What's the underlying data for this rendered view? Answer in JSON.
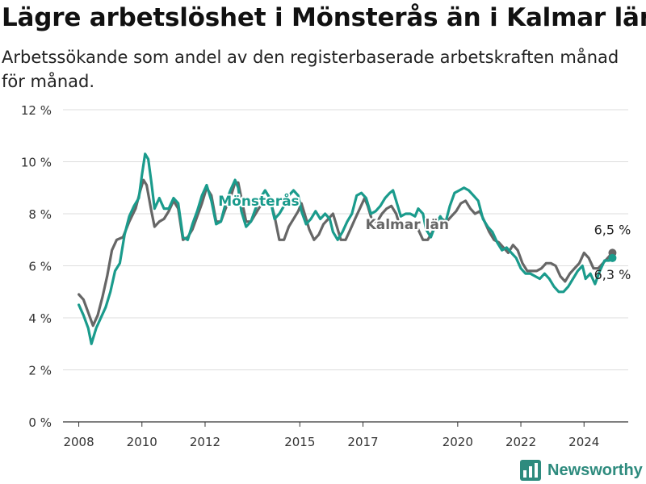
{
  "title": "Lägre arbetslöshet i Mönsterås än i Kalmar län",
  "subtitle": "Arbetssökande som andel av den registerbaserade arbetskraften månad för månad.",
  "brand": "Newsworthy",
  "colors": {
    "monsteras": "#1a9b8c",
    "kalmar": "#666666",
    "grid": "#dddddd",
    "axis": "#333333"
  },
  "chart_data": {
    "type": "line",
    "ylim": [
      0,
      12
    ],
    "yticks": [
      0,
      2,
      4,
      6,
      8,
      10,
      12
    ],
    "ytick_labels": [
      "0 %",
      "2 %",
      "4 %",
      "6 %",
      "8 %",
      "10 %",
      "12 %"
    ],
    "xlim": [
      2007.5,
      2025.4
    ],
    "xticks": [
      2008,
      2010,
      2012,
      2015,
      2017,
      2020,
      2022,
      2024
    ],
    "xtick_labels": [
      "2008",
      "2010",
      "2012",
      "2015",
      "2017",
      "2020",
      "2022",
      "2024"
    ],
    "series": [
      {
        "name": "Kalmar län",
        "color": "#666666",
        "end_label": "6,5 %",
        "points": [
          [
            2008.0,
            4.9
          ],
          [
            2008.15,
            4.7
          ],
          [
            2008.3,
            4.2
          ],
          [
            2008.45,
            3.7
          ],
          [
            2008.6,
            4.1
          ],
          [
            2008.75,
            4.8
          ],
          [
            2008.9,
            5.6
          ],
          [
            2009.05,
            6.6
          ],
          [
            2009.2,
            7.0
          ],
          [
            2009.4,
            7.1
          ],
          [
            2009.6,
            7.7
          ],
          [
            2009.8,
            8.2
          ],
          [
            2009.95,
            8.9
          ],
          [
            2010.05,
            9.3
          ],
          [
            2010.15,
            9.1
          ],
          [
            2010.3,
            8.1
          ],
          [
            2010.4,
            7.5
          ],
          [
            2010.55,
            7.7
          ],
          [
            2010.7,
            7.8
          ],
          [
            2010.85,
            8.1
          ],
          [
            2011.0,
            8.5
          ],
          [
            2011.15,
            8.2
          ],
          [
            2011.3,
            7.0
          ],
          [
            2011.45,
            7.1
          ],
          [
            2011.6,
            7.4
          ],
          [
            2011.75,
            7.9
          ],
          [
            2011.9,
            8.4
          ],
          [
            2012.05,
            9.0
          ],
          [
            2012.2,
            8.7
          ],
          [
            2012.35,
            7.7
          ],
          [
            2012.5,
            7.7
          ],
          [
            2012.65,
            8.2
          ],
          [
            2012.8,
            8.6
          ],
          [
            2012.95,
            9.2
          ],
          [
            2013.05,
            9.2
          ],
          [
            2013.15,
            8.6
          ],
          [
            2013.3,
            7.7
          ],
          [
            2013.45,
            7.7
          ],
          [
            2013.6,
            8.0
          ],
          [
            2013.75,
            8.3
          ],
          [
            2013.9,
            8.5
          ],
          [
            2014.05,
            8.6
          ],
          [
            2014.2,
            7.9
          ],
          [
            2014.35,
            7.0
          ],
          [
            2014.5,
            7.0
          ],
          [
            2014.65,
            7.5
          ],
          [
            2014.8,
            7.8
          ],
          [
            2014.95,
            8.1
          ],
          [
            2015.05,
            8.4
          ],
          [
            2015.15,
            8.0
          ],
          [
            2015.3,
            7.4
          ],
          [
            2015.45,
            7.0
          ],
          [
            2015.6,
            7.2
          ],
          [
            2015.75,
            7.6
          ],
          [
            2015.9,
            7.8
          ],
          [
            2016.05,
            8.0
          ],
          [
            2016.15,
            7.6
          ],
          [
            2016.3,
            7.0
          ],
          [
            2016.45,
            7.0
          ],
          [
            2016.6,
            7.4
          ],
          [
            2016.75,
            7.8
          ],
          [
            2016.9,
            8.2
          ],
          [
            2017.05,
            8.6
          ],
          [
            2017.15,
            8.3
          ],
          [
            2017.3,
            7.7
          ],
          [
            2017.45,
            7.7
          ],
          [
            2017.6,
            8.0
          ],
          [
            2017.75,
            8.2
          ],
          [
            2017.9,
            8.3
          ],
          [
            2018.05,
            8.0
          ],
          [
            2018.15,
            7.6
          ],
          [
            2018.3,
            7.6
          ],
          [
            2018.45,
            7.7
          ],
          [
            2018.6,
            7.6
          ],
          [
            2018.75,
            7.4
          ],
          [
            2018.9,
            7.0
          ],
          [
            2019.05,
            7.0
          ],
          [
            2019.2,
            7.3
          ],
          [
            2019.35,
            7.6
          ],
          [
            2019.5,
            7.8
          ],
          [
            2019.65,
            7.7
          ],
          [
            2019.8,
            7.9
          ],
          [
            2019.95,
            8.1
          ],
          [
            2020.1,
            8.4
          ],
          [
            2020.25,
            8.5
          ],
          [
            2020.4,
            8.2
          ],
          [
            2020.55,
            8.0
          ],
          [
            2020.7,
            8.1
          ],
          [
            2020.85,
            7.7
          ],
          [
            2021.0,
            7.3
          ],
          [
            2021.15,
            7.0
          ],
          [
            2021.3,
            6.9
          ],
          [
            2021.45,
            6.7
          ],
          [
            2021.6,
            6.5
          ],
          [
            2021.75,
            6.8
          ],
          [
            2021.9,
            6.6
          ],
          [
            2022.05,
            6.1
          ],
          [
            2022.2,
            5.8
          ],
          [
            2022.35,
            5.8
          ],
          [
            2022.5,
            5.8
          ],
          [
            2022.65,
            5.9
          ],
          [
            2022.8,
            6.1
          ],
          [
            2022.95,
            6.1
          ],
          [
            2023.1,
            6.0
          ],
          [
            2023.25,
            5.6
          ],
          [
            2023.4,
            5.4
          ],
          [
            2023.55,
            5.7
          ],
          [
            2023.7,
            5.9
          ],
          [
            2023.85,
            6.1
          ],
          [
            2024.0,
            6.5
          ],
          [
            2024.15,
            6.3
          ],
          [
            2024.3,
            5.9
          ],
          [
            2024.45,
            5.9
          ],
          [
            2024.6,
            6.1
          ],
          [
            2024.75,
            6.3
          ],
          [
            2024.9,
            6.5
          ]
        ]
      },
      {
        "name": "Mönsterås",
        "color": "#1a9b8c",
        "end_label": "6,3 %",
        "points": [
          [
            2008.0,
            4.5
          ],
          [
            2008.15,
            4.1
          ],
          [
            2008.3,
            3.6
          ],
          [
            2008.4,
            3.0
          ],
          [
            2008.55,
            3.6
          ],
          [
            2008.7,
            4.0
          ],
          [
            2008.85,
            4.4
          ],
          [
            2009.0,
            5.0
          ],
          [
            2009.15,
            5.8
          ],
          [
            2009.3,
            6.1
          ],
          [
            2009.45,
            7.2
          ],
          [
            2009.6,
            7.9
          ],
          [
            2009.75,
            8.3
          ],
          [
            2009.9,
            8.6
          ],
          [
            2010.0,
            9.5
          ],
          [
            2010.1,
            10.3
          ],
          [
            2010.2,
            10.1
          ],
          [
            2010.3,
            9.2
          ],
          [
            2010.4,
            8.2
          ],
          [
            2010.55,
            8.6
          ],
          [
            2010.7,
            8.2
          ],
          [
            2010.85,
            8.2
          ],
          [
            2011.0,
            8.6
          ],
          [
            2011.15,
            8.4
          ],
          [
            2011.3,
            7.1
          ],
          [
            2011.45,
            7.0
          ],
          [
            2011.6,
            7.6
          ],
          [
            2011.75,
            8.1
          ],
          [
            2011.9,
            8.7
          ],
          [
            2012.05,
            9.1
          ],
          [
            2012.2,
            8.5
          ],
          [
            2012.35,
            7.6
          ],
          [
            2012.5,
            7.7
          ],
          [
            2012.65,
            8.4
          ],
          [
            2012.8,
            8.9
          ],
          [
            2012.95,
            9.3
          ],
          [
            2013.05,
            9.0
          ],
          [
            2013.15,
            8.1
          ],
          [
            2013.3,
            7.5
          ],
          [
            2013.45,
            7.7
          ],
          [
            2013.6,
            8.2
          ],
          [
            2013.75,
            8.6
          ],
          [
            2013.9,
            8.9
          ],
          [
            2014.05,
            8.6
          ],
          [
            2014.2,
            7.8
          ],
          [
            2014.35,
            8.0
          ],
          [
            2014.5,
            8.3
          ],
          [
            2014.65,
            8.7
          ],
          [
            2014.8,
            8.9
          ],
          [
            2014.95,
            8.7
          ],
          [
            2015.05,
            8.1
          ],
          [
            2015.2,
            7.6
          ],
          [
            2015.35,
            7.8
          ],
          [
            2015.5,
            8.1
          ],
          [
            2015.65,
            7.8
          ],
          [
            2015.8,
            8.0
          ],
          [
            2015.95,
            7.8
          ],
          [
            2016.05,
            7.3
          ],
          [
            2016.2,
            7.0
          ],
          [
            2016.35,
            7.3
          ],
          [
            2016.5,
            7.7
          ],
          [
            2016.65,
            8.0
          ],
          [
            2016.8,
            8.7
          ],
          [
            2016.95,
            8.8
          ],
          [
            2017.1,
            8.6
          ],
          [
            2017.25,
            8.0
          ],
          [
            2017.4,
            8.1
          ],
          [
            2017.55,
            8.3
          ],
          [
            2017.7,
            8.6
          ],
          [
            2017.85,
            8.8
          ],
          [
            2017.95,
            8.9
          ],
          [
            2018.05,
            8.5
          ],
          [
            2018.2,
            7.9
          ],
          [
            2018.35,
            8.0
          ],
          [
            2018.5,
            8.0
          ],
          [
            2018.65,
            7.9
          ],
          [
            2018.75,
            8.2
          ],
          [
            2018.9,
            8.0
          ],
          [
            2019.0,
            7.4
          ],
          [
            2019.15,
            7.1
          ],
          [
            2019.3,
            7.6
          ],
          [
            2019.45,
            7.9
          ],
          [
            2019.6,
            7.6
          ],
          [
            2019.75,
            8.3
          ],
          [
            2019.9,
            8.8
          ],
          [
            2020.05,
            8.9
          ],
          [
            2020.2,
            9.0
          ],
          [
            2020.35,
            8.9
          ],
          [
            2020.5,
            8.7
          ],
          [
            2020.65,
            8.5
          ],
          [
            2020.8,
            7.8
          ],
          [
            2020.95,
            7.5
          ],
          [
            2021.1,
            7.3
          ],
          [
            2021.25,
            6.9
          ],
          [
            2021.4,
            6.6
          ],
          [
            2021.55,
            6.7
          ],
          [
            2021.7,
            6.5
          ],
          [
            2021.85,
            6.3
          ],
          [
            2022.0,
            5.9
          ],
          [
            2022.15,
            5.7
          ],
          [
            2022.3,
            5.7
          ],
          [
            2022.45,
            5.6
          ],
          [
            2022.6,
            5.5
          ],
          [
            2022.75,
            5.7
          ],
          [
            2022.9,
            5.5
          ],
          [
            2023.05,
            5.2
          ],
          [
            2023.2,
            5.0
          ],
          [
            2023.35,
            5.0
          ],
          [
            2023.5,
            5.2
          ],
          [
            2023.65,
            5.5
          ],
          [
            2023.8,
            5.8
          ],
          [
            2023.95,
            6.0
          ],
          [
            2024.05,
            5.5
          ],
          [
            2024.2,
            5.7
          ],
          [
            2024.35,
            5.3
          ],
          [
            2024.5,
            5.8
          ],
          [
            2024.65,
            6.2
          ],
          [
            2024.8,
            6.2
          ],
          [
            2024.9,
            6.3
          ]
        ]
      }
    ],
    "annotations": [
      {
        "text": "Mönsterås",
        "series": "Mönsterås",
        "x": 2013.7,
        "y": 8.5
      },
      {
        "text": "Kalmar län",
        "series": "Kalmar län",
        "x": 2018.4,
        "y": 7.6
      }
    ]
  }
}
